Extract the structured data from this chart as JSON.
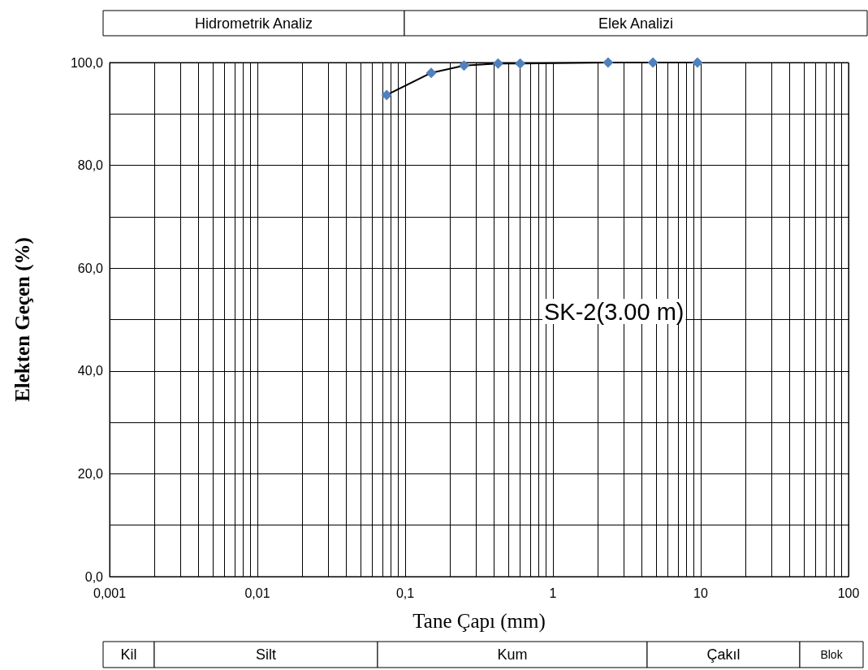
{
  "chart_data": {
    "type": "line",
    "xlabel": "Tane Çapı (mm)",
    "ylabel": "Elekten Geçen (%)",
    "annotations": [
      "SK-2(3.00 m)",
      "Hidrometrik Analiz",
      "Elek Analizi",
      "Kil",
      "Silt",
      "Kum",
      "Çakıl",
      "Blok"
    ],
    "x": [
      0.075,
      0.15,
      0.25,
      0.425,
      0.6,
      2.36,
      4.75,
      9.5
    ],
    "series": [
      {
        "color": "#4f81bd",
        "values": [
          93.7,
          98.0,
          99.4,
          99.8,
          99.8,
          100,
          100,
          100
        ]
      }
    ],
    "log": "x",
    "xlim": [
      0.001,
      100
    ],
    "xticks": [
      {
        "value": 0.001,
        "label": "0,001"
      },
      {
        "value": 0.01,
        "label": "0,01"
      },
      {
        "value": 0.1,
        "label": "0,1"
      },
      1,
      10,
      100
    ],
    "ylim": [
      0,
      100
    ],
    "yticks": [
      {
        "value": 0,
        "label": "0,0"
      },
      {
        "value": 20,
        "label": "20,0"
      },
      {
        "value": 40,
        "label": "40,0"
      },
      {
        "value": 60,
        "label": "60,0"
      },
      {
        "value": 80,
        "label": "80,0"
      },
      {
        "value": 100,
        "label": "100,0"
      }
    ],
    "grid": true,
    "marker": "diamond",
    "line_style": "solid"
  }
}
